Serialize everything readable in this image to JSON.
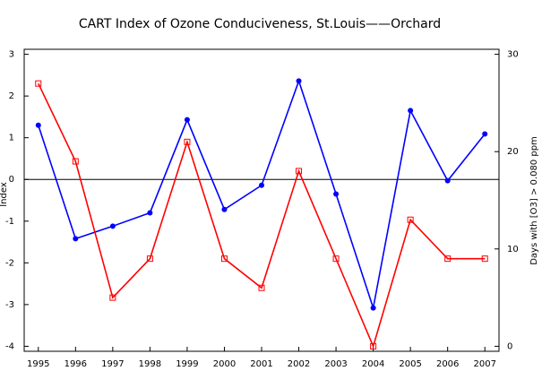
{
  "chart_data": {
    "type": "line",
    "title": "CART Index of Ozone Conduciveness, St.Louis——Orchard",
    "ylabel": "Index",
    "y2label": "Days with [O3] > 0.080 ppm",
    "x": [
      1995,
      1996,
      1997,
      1998,
      1999,
      2000,
      2001,
      2002,
      2003,
      2004,
      2005,
      2006,
      2007
    ],
    "xlim": [
      1994.62,
      2007.38
    ],
    "xticks": [
      1995,
      1996,
      1997,
      1998,
      1999,
      2000,
      2001,
      2002,
      2003,
      2004,
      2005,
      2006,
      2007
    ],
    "ylim": [
      -4.12,
      3.12
    ],
    "yticks": [
      -4,
      -3,
      -2,
      -1,
      0,
      1,
      2,
      3
    ],
    "y2lim": [
      -0.515,
      30.515
    ],
    "y2ticks": [
      0,
      10,
      20,
      30
    ],
    "reference_line": 0,
    "series": [
      {
        "name": "Index",
        "color": "#0000ff",
        "marker": "filled-circle",
        "values": [
          1.3,
          -1.42,
          -1.12,
          -0.8,
          1.43,
          -0.72,
          -0.14,
          2.36,
          -0.35,
          -3.08,
          1.65,
          -0.03,
          1.09
        ]
      },
      {
        "name": "Days",
        "color": "#ff0000",
        "marker": "open-square",
        "axis": "y2",
        "values": [
          27,
          19,
          5,
          9,
          21,
          9,
          6,
          18,
          9,
          0,
          13,
          9,
          9
        ]
      }
    ]
  }
}
